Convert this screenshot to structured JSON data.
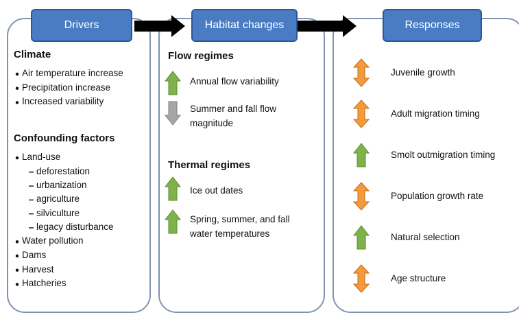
{
  "drivers": {
    "header": "Drivers",
    "sections": [
      {
        "title": "Climate",
        "items": [
          {
            "label": "Air temperature increase"
          },
          {
            "label": "Precipitation increase"
          },
          {
            "label": "Increased variability"
          }
        ]
      },
      {
        "title": "Confounding factors",
        "items": [
          {
            "label": "Land-use",
            "subitems": [
              "deforestation",
              "urbanization",
              "agriculture",
              "silviculture",
              "legacy disturbance"
            ]
          },
          {
            "label": "Water pollution"
          },
          {
            "label": "Dams"
          },
          {
            "label": "Harvest"
          },
          {
            "label": "Hatcheries"
          }
        ]
      }
    ]
  },
  "habitat": {
    "header": "Habitat changes",
    "sections": [
      {
        "title": "Flow regimes",
        "items": [
          "Annual flow variability",
          "Summer and fall flow magnitude"
        ]
      },
      {
        "title": "Thermal regimes",
        "items": [
          "Ice out dates",
          "Spring, summer, and fall water temperatures"
        ]
      }
    ]
  },
  "responses": {
    "header": "Responses",
    "items": [
      "Juvenile growth",
      "Adult migration timing",
      "Smolt outmigration timing",
      "Population growth rate",
      "Natural selection",
      "Age structure"
    ]
  }
}
